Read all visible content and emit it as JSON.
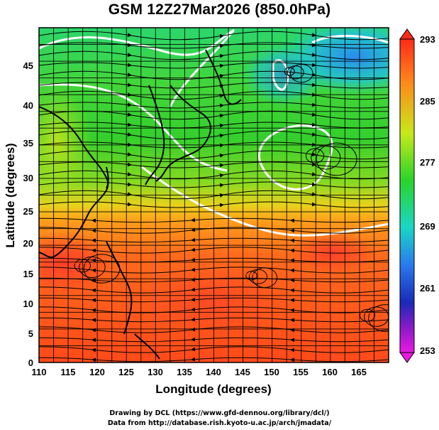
{
  "title": "GSM 12Z27Mar2026 (850.0hPa)",
  "x_axis": {
    "title": "Longitude (degrees)",
    "range": [
      110,
      170
    ],
    "ticks": [
      "110",
      "115",
      "120",
      "125",
      "130",
      "135",
      "140",
      "145",
      "150",
      "155",
      "160",
      "165"
    ]
  },
  "y_axis": {
    "title": "Latitude  (degrees)",
    "range": [
      0,
      50
    ],
    "ticks": [
      "0",
      "5",
      "10",
      "15",
      "20",
      "25",
      "30",
      "35",
      "40",
      "45"
    ]
  },
  "colorbar": {
    "min": 253,
    "max": 293,
    "labels": [
      "293",
      "285",
      "277",
      "269",
      "261",
      "253"
    ]
  },
  "credits": {
    "line1": "Drawing by DCL (https://www.gfd-dennou.org/library/dcl/)",
    "line2": "Data from http://database.rish.kyoto-u.ac.jp/arch/jmadata/"
  },
  "colors": {
    "warm": "#ff4b1e",
    "orange": "#ff9a1a",
    "yellow_green": "#b8e61a",
    "green": "#2fd22a",
    "cyan": "#1ad7c4",
    "sky": "#28a6ee"
  }
}
